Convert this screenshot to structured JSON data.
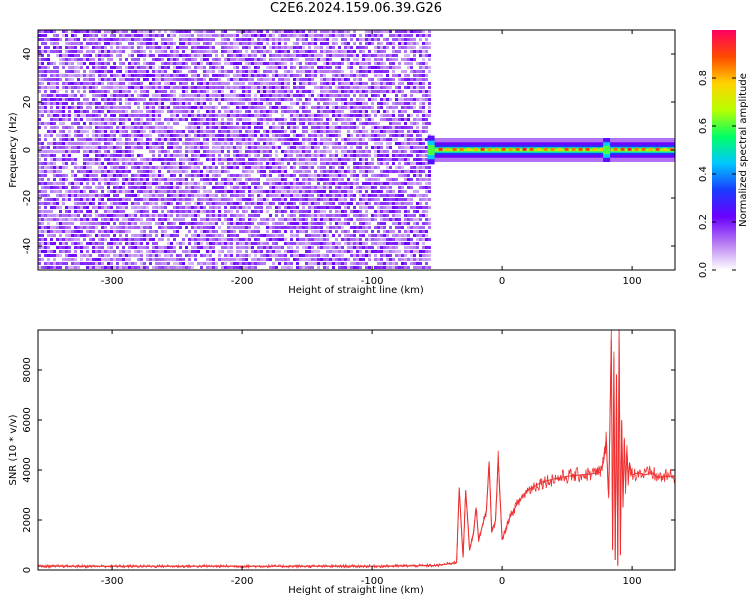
{
  "title": "C2E6.2024.159.06.39.G26",
  "chart_data": [
    {
      "type": "heatmap",
      "xlabel": "Height of straight line (km)",
      "ylabel": "Frequency (Hz)",
      "xlim": [
        -357,
        133
      ],
      "ylim": [
        -50,
        50
      ],
      "xticks": [
        -300,
        -200,
        -100,
        0,
        100
      ],
      "yticks": [
        -40,
        -20,
        0,
        20,
        40
      ],
      "grid": false,
      "colorbar": {
        "label": "Normalized spectral amplitude",
        "range": [
          0,
          1
        ],
        "ticks": [
          0.0,
          0.2,
          0.4,
          0.6,
          0.8
        ],
        "colormap": [
          "#ffffff",
          "#b77cf2",
          "#6a00ff",
          "#1a3cff",
          "#00c8ff",
          "#00ff66",
          "#b8ff00",
          "#ffd200",
          "#ff4a00",
          "#ff0060"
        ]
      },
      "regions": [
        {
          "x_range": [
            -357,
            -55
          ],
          "freq_range": [
            -50,
            50
          ],
          "amplitude": "low noise 0.05-0.25"
        },
        {
          "x_range": [
            -55,
            133
          ],
          "freq_range": [
            -3,
            3
          ],
          "amplitude": "signal band 0.3-0.95 centered at 0 Hz"
        }
      ]
    },
    {
      "type": "line",
      "xlabel": "Height of straight line (km)",
      "ylabel": "SNR (10 * v/v)",
      "xlim": [
        -357,
        133
      ],
      "ylim": [
        0,
        9600
      ],
      "xticks": [
        -300,
        -200,
        -100,
        0,
        100
      ],
      "yticks": [
        0,
        2000,
        4000,
        6000,
        8000
      ],
      "grid": false,
      "series": [
        {
          "color": "#ee3030",
          "x": [
            -357,
            -300,
            -200,
            -100,
            -50,
            -35,
            -33,
            -30,
            -28,
            -25,
            -22,
            -20,
            -18,
            -15,
            -12,
            -10,
            -8,
            -5,
            -3,
            0,
            5,
            10,
            15,
            20,
            30,
            40,
            50,
            60,
            70,
            75,
            78,
            80,
            82,
            84,
            85,
            86,
            87,
            88,
            89,
            90,
            91,
            92,
            93,
            94,
            95,
            96,
            97,
            98,
            100,
            105,
            110,
            115,
            120,
            125,
            133
          ],
          "y": [
            150,
            150,
            150,
            150,
            180,
            300,
            3300,
            500,
            3200,
            800,
            1500,
            2500,
            1200,
            1800,
            2400,
            4300,
            1500,
            2000,
            4500,
            1200,
            2000,
            2500,
            2900,
            3200,
            3500,
            3650,
            3750,
            3800,
            3850,
            3900,
            4300,
            5200,
            3000,
            9200,
            800,
            8500,
            400,
            7800,
            200,
            9600,
            600,
            6000,
            2500,
            5200,
            3300,
            4800,
            3600,
            4300,
            3800,
            3900,
            3800,
            3900,
            3700,
            3750,
            3750
          ]
        }
      ]
    }
  ]
}
